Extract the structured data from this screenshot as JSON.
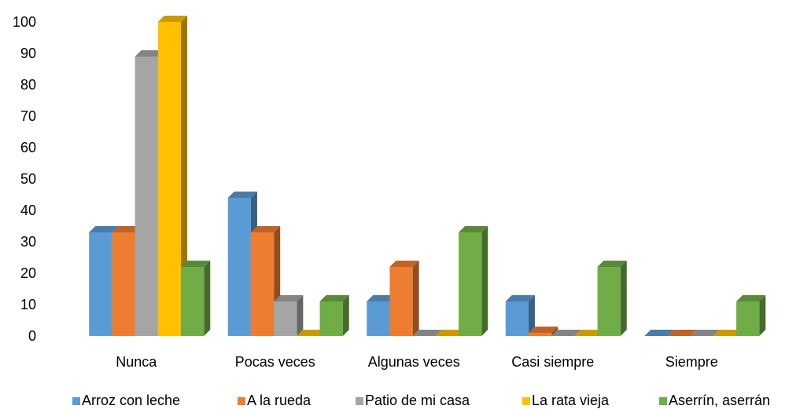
{
  "chart_data": {
    "type": "bar",
    "title": "",
    "xlabel": "",
    "ylabel": "",
    "ylim": [
      0,
      100
    ],
    "y_ticks": [
      0,
      10,
      20,
      30,
      40,
      50,
      60,
      70,
      80,
      90,
      100
    ],
    "categories": [
      "Nunca",
      "Pocas veces",
      "Algunas veces",
      "Casi siempre",
      "Siempre"
    ],
    "series": [
      {
        "name": "Arroz con leche",
        "color": "#5B9BD5",
        "values": [
          33,
          44,
          11,
          11,
          0
        ]
      },
      {
        "name": "A la rueda",
        "color": "#ED7D31",
        "values": [
          33,
          33,
          22,
          1,
          0
        ]
      },
      {
        "name": "Patio de mi casa",
        "color": "#A5A5A5",
        "values": [
          89,
          11,
          0,
          0,
          0
        ]
      },
      {
        "name": "La rata vieja",
        "color": "#FFC000",
        "values": [
          100,
          0,
          0,
          0,
          0
        ]
      },
      {
        "name": "Aserrín, aserrán",
        "color": "#70AD47",
        "values": [
          22,
          11,
          33,
          22,
          11
        ]
      }
    ],
    "grid": false,
    "legend_position": "bottom",
    "style": "3d-column"
  }
}
